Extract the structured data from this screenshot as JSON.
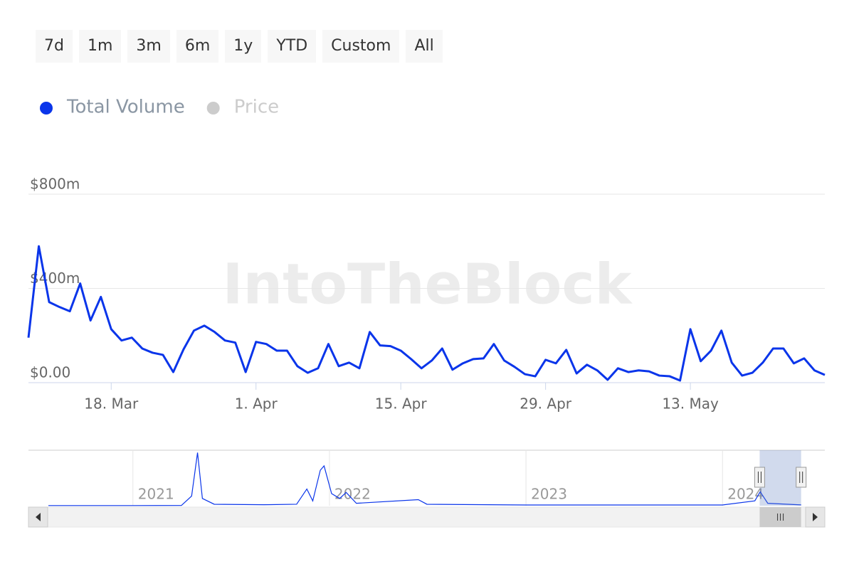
{
  "range_selector": [
    "7d",
    "1m",
    "3m",
    "6m",
    "1y",
    "YTD",
    "Custom",
    "All"
  ],
  "watermark": "IntoTheBlock",
  "chart_data": {
    "type": "line",
    "x": [
      "2024-03-10",
      "2024-03-11",
      "2024-03-12",
      "2024-03-13",
      "2024-03-14",
      "2024-03-15",
      "2024-03-16",
      "2024-03-17",
      "2024-03-18",
      "2024-03-19",
      "2024-03-20",
      "2024-03-21",
      "2024-03-22",
      "2024-03-23",
      "2024-03-24",
      "2024-03-25",
      "2024-03-26",
      "2024-03-27",
      "2024-03-28",
      "2024-03-29",
      "2024-03-30",
      "2024-03-31",
      "2024-04-01",
      "2024-04-02",
      "2024-04-03",
      "2024-04-04",
      "2024-04-05",
      "2024-04-06",
      "2024-04-07",
      "2024-04-08",
      "2024-04-09",
      "2024-04-10",
      "2024-04-11",
      "2024-04-12",
      "2024-04-13",
      "2024-04-14",
      "2024-04-15",
      "2024-04-16",
      "2024-04-17",
      "2024-04-18",
      "2024-04-19",
      "2024-04-20",
      "2024-04-21",
      "2024-04-22",
      "2024-04-23",
      "2024-04-24",
      "2024-04-25",
      "2024-04-26",
      "2024-04-27",
      "2024-04-28",
      "2024-04-29",
      "2024-04-30",
      "2024-05-01",
      "2024-05-02",
      "2024-05-03",
      "2024-05-04",
      "2024-05-05",
      "2024-05-06",
      "2024-05-07",
      "2024-05-08",
      "2024-05-09",
      "2024-05-10",
      "2024-05-11",
      "2024-05-12",
      "2024-05-13",
      "2024-05-14",
      "2024-05-15",
      "2024-05-16",
      "2024-05-17",
      "2024-05-18",
      "2024-05-19",
      "2024-05-20",
      "2024-05-21",
      "2024-05-22",
      "2024-05-23",
      "2024-05-24",
      "2024-05-25",
      "2024-05-26"
    ],
    "series": [
      {
        "name": "Total Volume",
        "color": "#0a35ea",
        "values": [
          191,
          579,
          342,
          321,
          303,
          421,
          264,
          364,
          227,
          179,
          191,
          145,
          127,
          118,
          45,
          142,
          221,
          242,
          215,
          179,
          170,
          45,
          173,
          164,
          136,
          136,
          70,
          42,
          61,
          164,
          70,
          85,
          61,
          215,
          158,
          155,
          136,
          100,
          61,
          94,
          145,
          55,
          82,
          100,
          103,
          164,
          94,
          67,
          36,
          27,
          97,
          82,
          139,
          39,
          76,
          52,
          12,
          61,
          45,
          52,
          48,
          30,
          27,
          9,
          227,
          91,
          136,
          221,
          85,
          30,
          42,
          85,
          145,
          145,
          82,
          103,
          52,
          33
        ]
      },
      {
        "name": "Price",
        "color": "#cccccc",
        "visible": false
      }
    ],
    "xlim": [
      "2024-03-10",
      "2024-05-26"
    ],
    "xticks": [
      {
        "value": "2024-03-18",
        "label": "18. Mar"
      },
      {
        "value": "2024-04-01",
        "label": "1. Apr"
      },
      {
        "value": "2024-04-15",
        "label": "15. Apr"
      },
      {
        "value": "2024-04-29",
        "label": "29. Apr"
      },
      {
        "value": "2024-05-13",
        "label": "13. May"
      }
    ],
    "ylim": [
      0,
      800
    ],
    "yticks": [
      {
        "value": 0,
        "label": "$0.00"
      },
      {
        "value": 400,
        "label": "$400m"
      },
      {
        "value": 800,
        "label": "$800m"
      }
    ],
    "grid": true,
    "navigator": {
      "x": [
        "2020-07-28",
        "2021-01-01",
        "2021-04-01",
        "2021-04-20",
        "2021-05-01",
        "2021-05-10",
        "2021-06-01",
        "2021-09-01",
        "2021-11-01",
        "2021-11-20",
        "2021-12-01",
        "2021-12-15",
        "2021-12-22",
        "2022-01-05",
        "2022-01-20",
        "2022-02-01",
        "2022-02-20",
        "2022-06-15",
        "2022-07-01",
        "2023-01-01",
        "2024-01-01",
        "2024-03-01",
        "2024-03-11",
        "2024-03-25",
        "2024-05-26"
      ],
      "values": [
        5,
        5,
        10,
        400,
        2200,
        300,
        60,
        40,
        60,
        690,
        200,
        1470,
        1650,
        500,
        300,
        550,
        100,
        250,
        60,
        30,
        30,
        200,
        580,
        100,
        33
      ],
      "xlim": [
        "2020-07-28",
        "2024-06-02"
      ],
      "ylim": [
        0,
        2300
      ],
      "xticks": [
        {
          "value": "2021-01-01",
          "label": "2021"
        },
        {
          "value": "2022-01-01",
          "label": "2022"
        },
        {
          "value": "2023-01-01",
          "label": "2023"
        },
        {
          "value": "2024-01-01",
          "label": "2024"
        }
      ]
    }
  }
}
